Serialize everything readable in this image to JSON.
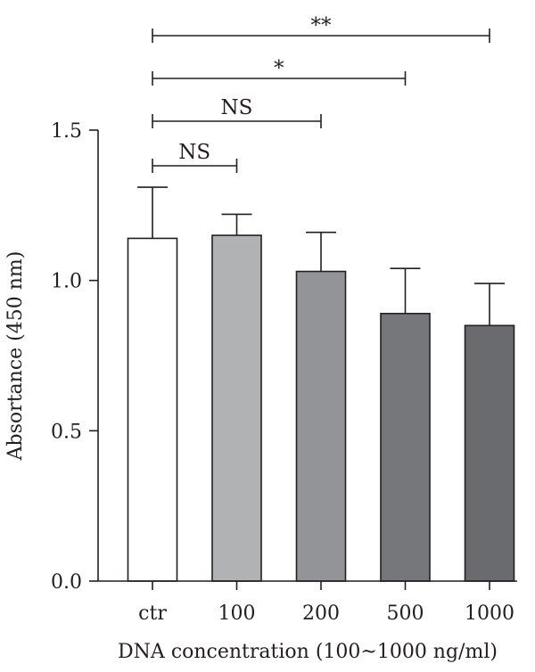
{
  "chart_data": {
    "type": "bar",
    "categories": [
      "ctr",
      "100",
      "200",
      "500",
      "1000"
    ],
    "values": [
      1.14,
      1.15,
      1.03,
      0.89,
      0.85
    ],
    "errors": [
      0.17,
      0.07,
      0.13,
      0.15,
      0.14
    ],
    "bar_colors": [
      "#ffffff",
      "#b1b2b4",
      "#939497",
      "#76777b",
      "#6a6b6f"
    ],
    "xlabel": "DNA concentration (100~1000 ng/ml)",
    "ylabel": "Absortance (450 nm)",
    "ylim": [
      0,
      1.5
    ],
    "yticks": [
      "0.0",
      "0.5",
      "1.0",
      "1.5"
    ],
    "significance": [
      {
        "from": "ctr",
        "to": "100",
        "label": "NS"
      },
      {
        "from": "ctr",
        "to": "200",
        "label": "NS"
      },
      {
        "from": "ctr",
        "to": "500",
        "label": "*"
      },
      {
        "from": "ctr",
        "to": "1000",
        "label": "**"
      }
    ]
  }
}
